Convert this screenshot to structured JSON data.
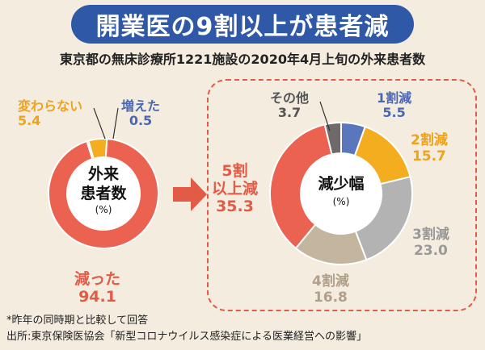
{
  "title": "開業医の9割以上が患者減",
  "subtitle": "東京都の無床診療所1221施設の2020年4月上旬の外来患者数",
  "colors": {
    "title_bg": "#2f59a6",
    "dashed_border": "#e25b46"
  },
  "chart_data": [
    {
      "type": "pie",
      "center_label": [
        "外来",
        "患者数"
      ],
      "unit": "(%)",
      "slices": [
        {
          "name": "減った",
          "value": 94.1,
          "color": "#ec6250"
        },
        {
          "name": "増えた",
          "value": 0.5,
          "color": "#5a76bd"
        },
        {
          "name": "変わらない",
          "value": 5.4,
          "color": "#f3ad1f"
        }
      ]
    },
    {
      "type": "pie",
      "center_label": [
        "減少幅"
      ],
      "unit": "(%)",
      "slices": [
        {
          "name": "1割減",
          "value": 5.5,
          "color": "#5a76bd"
        },
        {
          "name": "2割減",
          "value": 15.7,
          "color": "#f3ad1f"
        },
        {
          "name": "3割減",
          "value": 23.0,
          "color": "#b3b3b3"
        },
        {
          "name": "4割減",
          "value": 16.8,
          "color": "#c4b59f"
        },
        {
          "name": "5割\n以上減",
          "value": 35.3,
          "color": "#ec6250"
        },
        {
          "name": "その他",
          "value": 3.7,
          "color": "#6e6a6a"
        }
      ]
    }
  ],
  "labels": {
    "left": {
      "decreased": {
        "name": "減った",
        "value": "94.1"
      },
      "increased": {
        "name": "増えた",
        "value": "0.5"
      },
      "unchanged": {
        "name": "変わらない",
        "value": "5.4"
      }
    },
    "right": {
      "d1": {
        "name": "1割減",
        "value": "5.5"
      },
      "d2": {
        "name": "2割減",
        "value": "15.7"
      },
      "d3": {
        "name": "3割減",
        "value": "23.0"
      },
      "d4": {
        "name": "4割減",
        "value": "16.8"
      },
      "d5_line1": "5割",
      "d5_line2": "以上減",
      "d5_value": "35.3",
      "other": {
        "name": "その他",
        "value": "3.7"
      }
    }
  },
  "note": "*昨年の同時期と比較して回答",
  "source": "出所:東京保険医協会「新型コロナウイルス感染症による医業経営への影響」"
}
